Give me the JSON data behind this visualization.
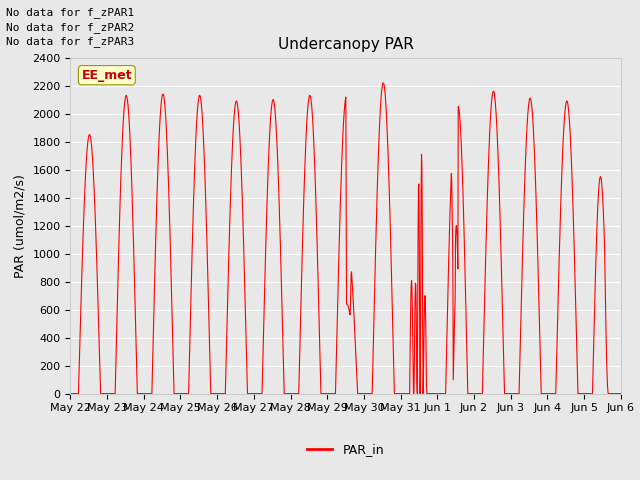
{
  "title": "Undercanopy PAR",
  "ylabel": "PAR (umol/m2/s)",
  "ylim": [
    0,
    2400
  ],
  "yticks": [
    0,
    200,
    400,
    600,
    800,
    1000,
    1200,
    1400,
    1600,
    1800,
    2000,
    2200,
    2400
  ],
  "line_color": "#ff0000",
  "legend_label": "PAR_in",
  "no_data_lines": [
    "No data for f_zPAR1",
    "No data for f_zPAR2",
    "No data for f_zPAR3"
  ],
  "ee_met_text": "EE_met",
  "x_tick_labels": [
    "May 22",
    "May 23",
    "May 24",
    "May 25",
    "May 26",
    "May 27",
    "May 28",
    "May 29",
    "May 30",
    "May 31",
    "Jun 1",
    "Jun 2",
    "Jun 3",
    "Jun 4",
    "Jun 5",
    "Jun 6"
  ],
  "total_days": 15,
  "points_per_day": 96,
  "fig_facecolor": "#e8e8e8",
  "ax_facecolor": "#e8e8e8",
  "grid_color": "#ffffff",
  "title_fontsize": 11,
  "label_fontsize": 9,
  "tick_fontsize": 8
}
